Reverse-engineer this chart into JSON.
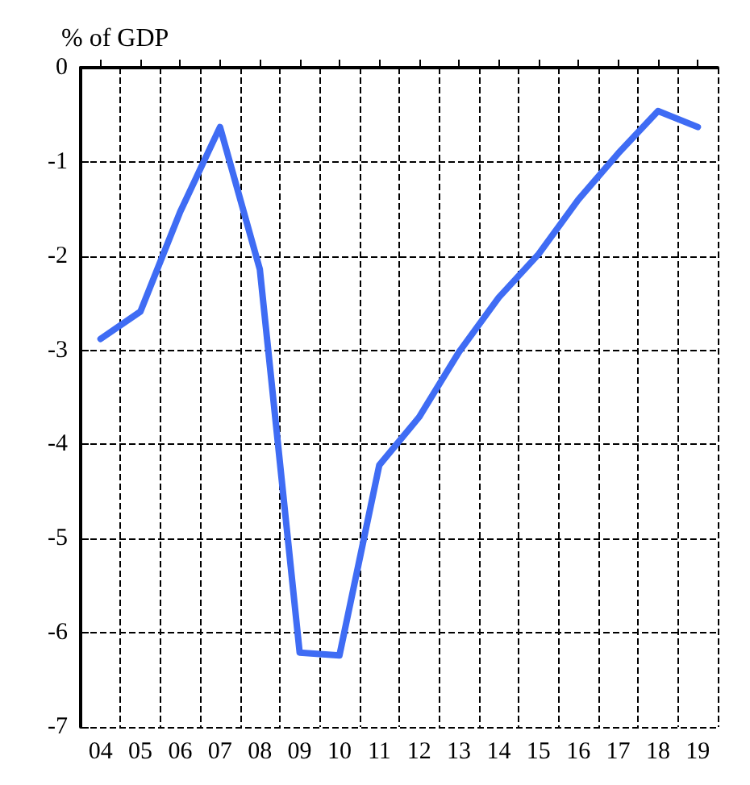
{
  "chart_data": {
    "type": "line",
    "ylabel": "% of GDP",
    "categories": [
      "04",
      "05",
      "06",
      "07",
      "08",
      "09",
      "10",
      "11",
      "12",
      "13",
      "14",
      "15",
      "16",
      "17",
      "18",
      "19"
    ],
    "series": [
      {
        "color": "#3f6cf4",
        "values": [
          -2.88,
          -2.59,
          -1.53,
          -0.63,
          -2.14,
          -6.21,
          -6.24,
          -4.22,
          -3.71,
          -3.02,
          -2.44,
          -1.98,
          -1.4,
          -0.91,
          -0.46,
          -0.63
        ]
      }
    ],
    "ylim": [
      -7,
      0
    ],
    "yticks": [
      -7,
      -6,
      -5,
      -4,
      -3,
      -2,
      -1,
      0
    ],
    "grid": true,
    "marker": "none",
    "line_style": "solid"
  }
}
